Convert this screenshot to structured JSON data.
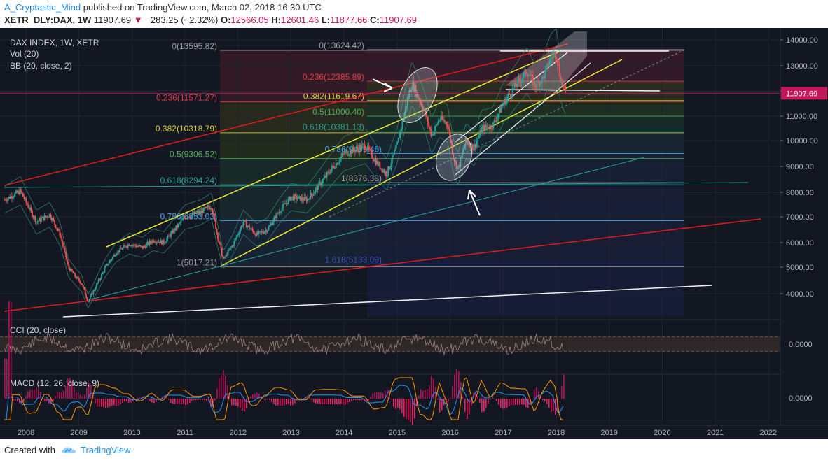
{
  "header": {
    "author": "A_Cryptastic_Mind",
    "published": "published on TradingView.com, March 02, 2018 16:30 UTC",
    "symbol": "XETR_DLY:DAX, 1W",
    "last": "11907.69",
    "change": "−283.25 (−2.32%)",
    "o_label": "O:",
    "o": "12566.05",
    "h_label": "H:",
    "h": "12601.46",
    "l_label": "L:",
    "l": "11877.66",
    "c_label": "C:",
    "c": "11907.69"
  },
  "legend": {
    "title": "DAX INDEX, 1W, XETR",
    "vol": "Vol (20)",
    "bb": "BB (20, close, 2)",
    "cci": "CCI (20, close)",
    "macd": "MACD (12, 26, close, 9)"
  },
  "footer": {
    "created_with": "Created with",
    "brand": "TradingView"
  },
  "colors": {
    "background": "#131722",
    "candle_up": "#26a69a",
    "candle_down": "#ef5350",
    "red_line": "#e31b1b",
    "yellow_line": "#f2ef2a",
    "white_line": "#f2f2f2",
    "teal_line": "#26a69a",
    "price_label_bg": "#c2185b"
  },
  "chart_data": [
    {
      "type": "candlestick",
      "title": "DAX INDEX, 1W, XETR",
      "x_ticks": [
        "2008",
        "2009",
        "2010",
        "2011",
        "2012",
        "2013",
        "2014",
        "2015",
        "2016",
        "2017",
        "2018",
        "2019",
        "2020",
        "2021",
        "2022"
      ],
      "y_ticks": [
        "14000.00",
        "13000.00",
        "12000.00",
        "11000.00",
        "10000.00",
        "9000.00",
        "8000.00",
        "7000.00",
        "6000.00",
        "5000.00",
        "4000.00"
      ],
      "ylim": [
        3100,
        14400
      ],
      "current_price_label": "11907.69",
      "price_path": [
        [
          2007.6,
          7700
        ],
        [
          2007.9,
          8050
        ],
        [
          2008.0,
          7600
        ],
        [
          2008.2,
          6800
        ],
        [
          2008.45,
          7100
        ],
        [
          2008.65,
          6300
        ],
        [
          2008.8,
          5000
        ],
        [
          2008.95,
          4600
        ],
        [
          2009.05,
          4400
        ],
        [
          2009.17,
          3700
        ],
        [
          2009.3,
          4200
        ],
        [
          2009.5,
          5000
        ],
        [
          2009.7,
          5600
        ],
        [
          2009.95,
          5950
        ],
        [
          2010.2,
          5800
        ],
        [
          2010.4,
          6100
        ],
        [
          2010.6,
          6000
        ],
        [
          2010.8,
          6500
        ],
        [
          2011.0,
          7000
        ],
        [
          2011.3,
          7200
        ],
        [
          2011.5,
          7450
        ],
        [
          2011.6,
          6400
        ],
        [
          2011.72,
          5300
        ],
        [
          2011.9,
          5900
        ],
        [
          2012.1,
          6800
        ],
        [
          2012.35,
          6300
        ],
        [
          2012.55,
          6500
        ],
        [
          2012.8,
          7300
        ],
        [
          2013.0,
          7800
        ],
        [
          2013.3,
          7700
        ],
        [
          2013.5,
          8200
        ],
        [
          2013.8,
          9000
        ],
        [
          2014.0,
          9500
        ],
        [
          2014.4,
          9800
        ],
        [
          2014.6,
          9200
        ],
        [
          2014.8,
          8700
        ],
        [
          2015.0,
          9800
        ],
        [
          2015.2,
          11700
        ],
        [
          2015.28,
          12300
        ],
        [
          2015.5,
          11300
        ],
        [
          2015.65,
          10200
        ],
        [
          2015.8,
          10900
        ],
        [
          2015.95,
          10700
        ],
        [
          2016.07,
          9300
        ],
        [
          2016.15,
          8900
        ],
        [
          2016.3,
          10000
        ],
        [
          2016.45,
          9700
        ],
        [
          2016.6,
          10500
        ],
        [
          2016.8,
          10600
        ],
        [
          2017.0,
          11500
        ],
        [
          2017.2,
          12100
        ],
        [
          2017.45,
          12800
        ],
        [
          2017.6,
          12200
        ],
        [
          2017.75,
          12500
        ],
        [
          2017.9,
          13300
        ],
        [
          2018.0,
          13500
        ],
        [
          2018.07,
          12600
        ],
        [
          2018.17,
          11907.69
        ]
      ],
      "fib_levels": [
        {
          "label": "0(13595.82)",
          "value": 13595.82
        },
        {
          "label": "0.236(11571.27)",
          "value": 11571.27
        },
        {
          "label": "0.382(10318.79)",
          "value": 10318.79
        },
        {
          "label": "0.5(9306.52)",
          "value": 9306.52
        },
        {
          "label": "0.618(8294.24)",
          "value": 8294.24
        },
        {
          "label": "0.786(6853.03)",
          "value": 6853.03
        },
        {
          "label": "1(5017.21)",
          "value": 5017.21
        },
        {
          "label": "0(13624.42)",
          "value": 13624.42
        },
        {
          "label": "0.236(12385.89)",
          "value": 12385.89
        },
        {
          "label": "0.382(11619.67)",
          "value": 11619.67
        },
        {
          "label": "0.5(11000.40)",
          "value": 11000.4
        },
        {
          "label": "0.618(10381.13)",
          "value": 10381.13
        },
        {
          "label": "0.786(9499.46)",
          "value": 9499.46
        },
        {
          "label": "1(8376.38)",
          "value": 8376.38
        },
        {
          "label": "1.618(5133.09)",
          "value": 5133.09
        }
      ]
    },
    {
      "type": "line",
      "title": "CCI (20, close)",
      "y_ticks": [
        "0.0000"
      ]
    },
    {
      "type": "histogram",
      "title": "MACD (12, 26, close, 9)",
      "y_ticks": [
        "0.0000"
      ]
    }
  ]
}
